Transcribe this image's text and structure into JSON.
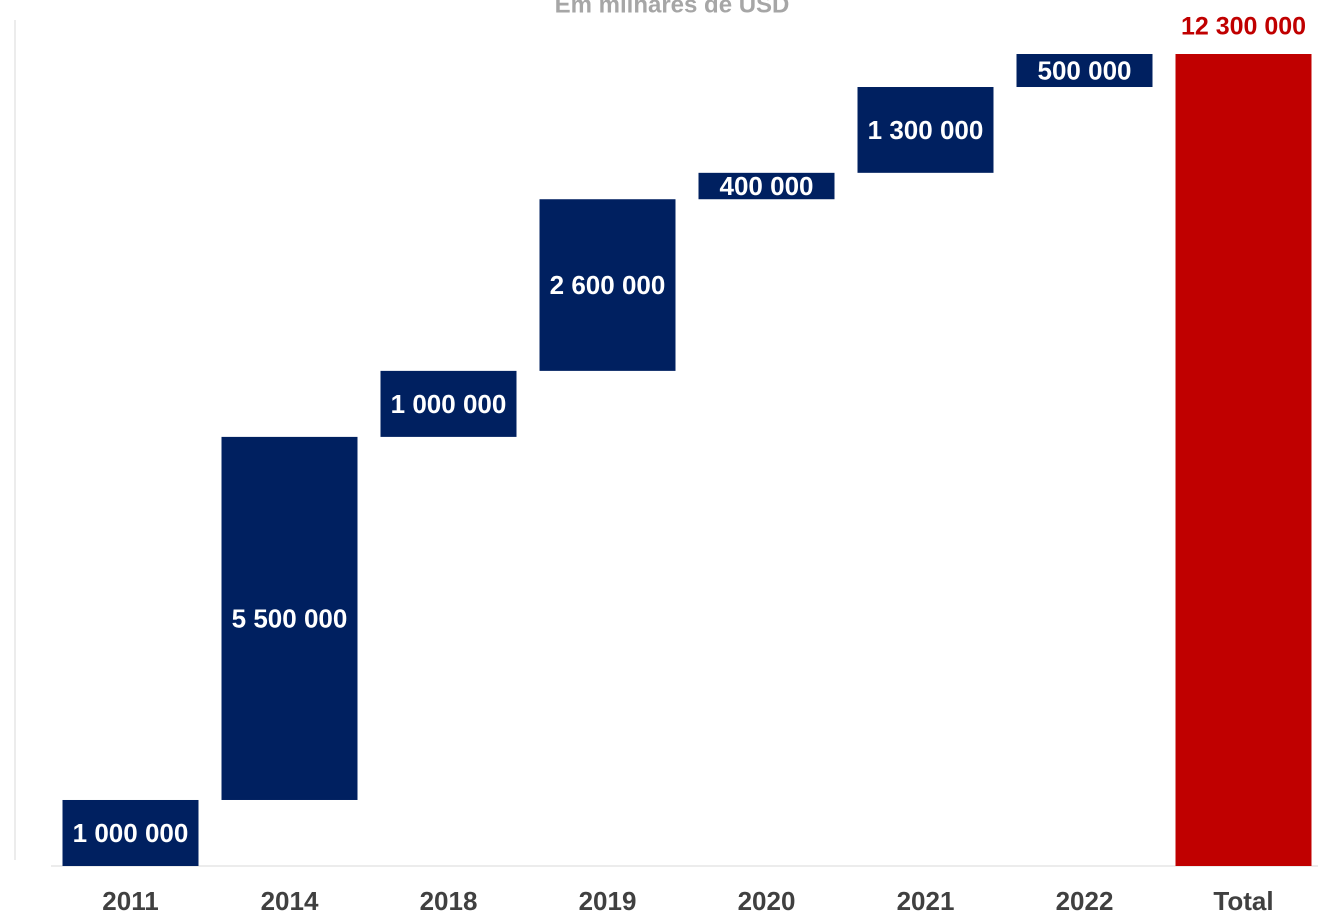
{
  "chart_data": {
    "type": "waterfall",
    "title": "Em milhares de USD",
    "categories": [
      "2011",
      "2014",
      "2018",
      "2019",
      "2020",
      "2021",
      "2022",
      "Total"
    ],
    "values": [
      1000000,
      5500000,
      1000000,
      2600000,
      400000,
      1300000,
      500000,
      12300000
    ],
    "value_labels": [
      "1 000 000",
      "5 500 000",
      "1 000 000",
      "2 600 000",
      "400 000",
      "1 300 000",
      "500 000",
      "12 300 000"
    ],
    "is_total": [
      false,
      false,
      false,
      false,
      false,
      false,
      false,
      true
    ],
    "colors": [
      "#002060",
      "#002060",
      "#002060",
      "#002060",
      "#002060",
      "#002060",
      "#002060",
      "#c00000"
    ],
    "ylim": [
      0,
      12300000
    ]
  }
}
